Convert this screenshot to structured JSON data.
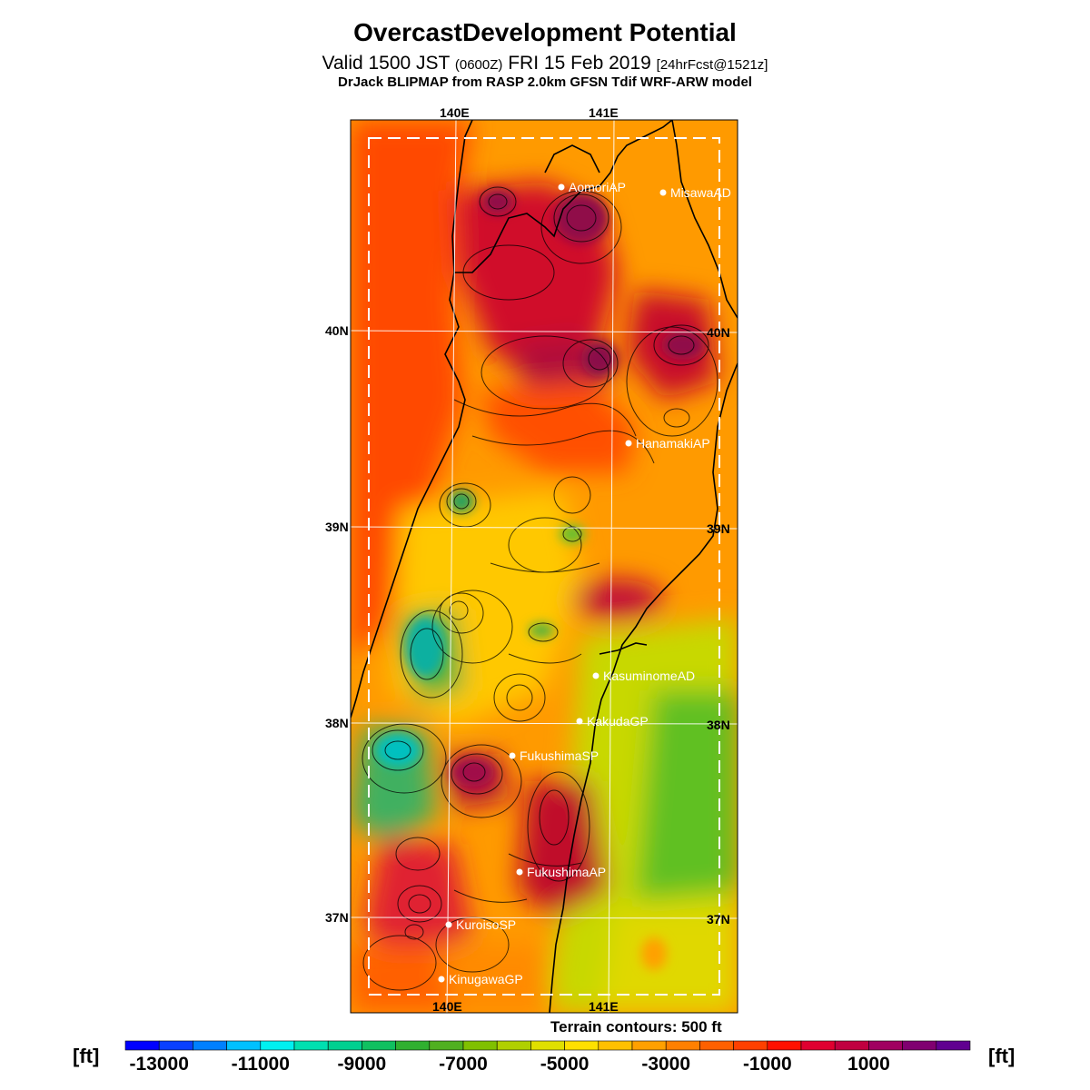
{
  "header": {
    "title": "OvercastDevelopment Potential",
    "valid_main": "Valid 1500 JST",
    "valid_utc": "(0600Z)",
    "valid_date": "FRI 15 Feb 2019",
    "forecast_info": "[24hrFcst@1521z]",
    "model_line": "DrJack BLIPMAP from RASP 2.0km GFSN Tdif WRF-ARW model"
  },
  "axes": {
    "lon_labels": [
      "140E",
      "141E"
    ],
    "lat_labels": [
      "40N",
      "39N",
      "38N",
      "37N"
    ]
  },
  "cities": [
    {
      "name": "AomoriAP"
    },
    {
      "name": "MisawaAD"
    },
    {
      "name": "HanamakiAP"
    },
    {
      "name": "KasuminomeAD"
    },
    {
      "name": "KakudaGP"
    },
    {
      "name": "FukushimaSP"
    },
    {
      "name": "FukushimaAP"
    },
    {
      "name": "KuroisoSP"
    },
    {
      "name": "KinugawaGP"
    }
  ],
  "footer": {
    "terrain_note": "Terrain contours: 500 ft",
    "unit_left": "[ft]",
    "unit_right": "[ft]"
  },
  "colorbar": {
    "tick_labels": [
      "-13000",
      "-11000",
      "-9000",
      "-7000",
      "-5000",
      "-3000",
      "-1000",
      "1000"
    ],
    "colors": [
      "#0000ff",
      "#0a40ff",
      "#0080ff",
      "#00c0ff",
      "#00f0f0",
      "#00e0b0",
      "#00d090",
      "#10c060",
      "#30b030",
      "#50b020",
      "#80c000",
      "#b0d000",
      "#e0e000",
      "#ffe000",
      "#ffc000",
      "#ffa000",
      "#ff8000",
      "#ff6000",
      "#ff4000",
      "#ff1000",
      "#e00030",
      "#c00040",
      "#a00060",
      "#800070",
      "#600090"
    ]
  }
}
